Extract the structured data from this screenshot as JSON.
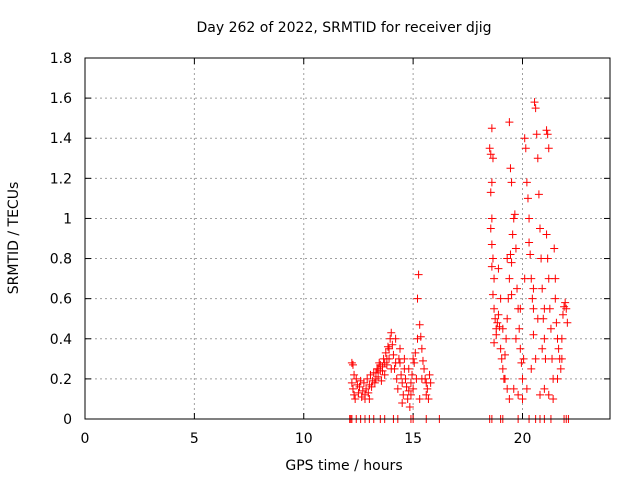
{
  "chart_data": {
    "type": "scatter",
    "title": "Day 262 of 2022, SRMTID for receiver djig",
    "xlabel": "GPS time / hours",
    "ylabel": "SRMTID / TECUs",
    "xlim": [
      0,
      24
    ],
    "ylim": [
      0,
      1.8
    ],
    "xticks": [
      0,
      5,
      10,
      15,
      20
    ],
    "yticks": [
      0,
      0.2,
      0.4,
      0.6,
      0.8,
      1,
      1.2,
      1.4,
      1.6,
      1.8
    ],
    "xtick_labels": [
      "0",
      "5",
      "10",
      "15",
      "20"
    ],
    "ytick_labels": [
      "0",
      "0.2",
      "0.4",
      "0.6",
      "0.8",
      "1",
      "1.2",
      "1.4",
      "1.6",
      "1.8"
    ],
    "grid": true,
    "marker": "+",
    "series": [
      {
        "name": "SRMTID",
        "color": "#ff0000",
        "points": [
          [
            12.1,
            0.0
          ],
          [
            12.15,
            0.0
          ],
          [
            12.2,
            0.0
          ],
          [
            12.4,
            0.0
          ],
          [
            12.6,
            0.0
          ],
          [
            12.8,
            0.0
          ],
          [
            13.0,
            0.0
          ],
          [
            13.2,
            0.0
          ],
          [
            13.5,
            0.0
          ],
          [
            13.7,
            0.0
          ],
          [
            14.1,
            0.0
          ],
          [
            14.3,
            0.0
          ],
          [
            14.9,
            0.0
          ],
          [
            15.0,
            0.0
          ],
          [
            15.6,
            0.0
          ],
          [
            16.2,
            0.0
          ],
          [
            18.5,
            0.0
          ],
          [
            18.6,
            0.0
          ],
          [
            19.0,
            0.0
          ],
          [
            19.1,
            0.0
          ],
          [
            19.8,
            0.0
          ],
          [
            20.3,
            0.0
          ],
          [
            20.6,
            0.0
          ],
          [
            20.8,
            0.0
          ],
          [
            21.0,
            0.0
          ],
          [
            21.3,
            0.0
          ],
          [
            21.9,
            0.0
          ],
          [
            22.0,
            0.0
          ],
          [
            22.1,
            0.0
          ],
          [
            12.2,
            0.28
          ],
          [
            12.25,
            0.27
          ],
          [
            12.3,
            0.22
          ],
          [
            12.2,
            0.18
          ],
          [
            12.25,
            0.15
          ],
          [
            12.3,
            0.12
          ],
          [
            12.35,
            0.1
          ],
          [
            12.4,
            0.2
          ],
          [
            12.45,
            0.17
          ],
          [
            12.5,
            0.13
          ],
          [
            12.55,
            0.16
          ],
          [
            12.6,
            0.19
          ],
          [
            12.65,
            0.11
          ],
          [
            12.7,
            0.14
          ],
          [
            12.75,
            0.18
          ],
          [
            12.8,
            0.12
          ],
          [
            12.85,
            0.15
          ],
          [
            12.9,
            0.2
          ],
          [
            12.95,
            0.13
          ],
          [
            13.0,
            0.17
          ],
          [
            13.05,
            0.22
          ],
          [
            13.1,
            0.16
          ],
          [
            13.15,
            0.19
          ],
          [
            13.2,
            0.23
          ],
          [
            13.25,
            0.18
          ],
          [
            13.3,
            0.2
          ],
          [
            13.35,
            0.25
          ],
          [
            13.4,
            0.21
          ],
          [
            13.45,
            0.28
          ],
          [
            13.5,
            0.24
          ],
          [
            13.55,
            0.19
          ],
          [
            13.6,
            0.26
          ],
          [
            13.65,
            0.3
          ],
          [
            13.7,
            0.22
          ],
          [
            13.75,
            0.33
          ],
          [
            13.8,
            0.27
          ],
          [
            13.85,
            0.36
          ],
          [
            13.9,
            0.3
          ],
          [
            13.95,
            0.4
          ],
          [
            14.0,
            0.43
          ],
          [
            14.05,
            0.37
          ],
          [
            14.1,
            0.32
          ],
          [
            14.15,
            0.25
          ],
          [
            14.2,
            0.28
          ],
          [
            14.25,
            0.2
          ],
          [
            14.3,
            0.15
          ],
          [
            14.35,
            0.3
          ],
          [
            14.4,
            0.35
          ],
          [
            14.45,
            0.22
          ],
          [
            14.5,
            0.18
          ],
          [
            14.55,
            0.12
          ],
          [
            14.6,
            0.25
          ],
          [
            14.65,
            0.2
          ],
          [
            14.7,
            0.16
          ],
          [
            14.75,
            0.1
          ],
          [
            14.8,
            0.14
          ],
          [
            14.85,
            0.06
          ],
          [
            14.9,
            0.18
          ],
          [
            14.95,
            0.22
          ],
          [
            15.0,
            0.3
          ],
          [
            15.05,
            0.28
          ],
          [
            15.1,
            0.33
          ],
          [
            15.15,
            0.2
          ],
          [
            15.2,
            0.6
          ],
          [
            15.25,
            0.72
          ],
          [
            15.3,
            0.47
          ],
          [
            15.35,
            0.41
          ],
          [
            15.4,
            0.35
          ],
          [
            15.45,
            0.29
          ],
          [
            15.5,
            0.25
          ],
          [
            15.55,
            0.2
          ],
          [
            15.6,
            0.18
          ],
          [
            15.65,
            0.15
          ],
          [
            15.7,
            0.1
          ],
          [
            15.75,
            0.22
          ],
          [
            15.8,
            0.18
          ],
          [
            13.3,
            0.23
          ],
          [
            13.4,
            0.25
          ],
          [
            13.5,
            0.27
          ],
          [
            13.6,
            0.24
          ],
          [
            13.7,
            0.28
          ],
          [
            13.8,
            0.3
          ],
          [
            13.9,
            0.35
          ],
          [
            14.0,
            0.25
          ],
          [
            14.2,
            0.4
          ],
          [
            14.4,
            0.28
          ],
          [
            14.6,
            0.3
          ],
          [
            14.8,
            0.25
          ],
          [
            15.0,
            0.15
          ],
          [
            15.2,
            0.4
          ],
          [
            15.4,
            0.2
          ],
          [
            15.6,
            0.12
          ],
          [
            15.3,
            0.1
          ],
          [
            14.9,
            0.12
          ],
          [
            14.5,
            0.08
          ],
          [
            13.0,
            0.1
          ],
          [
            12.8,
            0.1
          ],
          [
            18.5,
            1.35
          ],
          [
            18.55,
            1.32
          ],
          [
            18.6,
            1.45
          ],
          [
            18.65,
            1.3
          ],
          [
            18.6,
            1.18
          ],
          [
            18.55,
            1.13
          ],
          [
            18.6,
            1.0
          ],
          [
            18.55,
            0.95
          ],
          [
            18.6,
            0.87
          ],
          [
            18.65,
            0.8
          ],
          [
            18.6,
            0.76
          ],
          [
            18.7,
            0.7
          ],
          [
            18.65,
            0.62
          ],
          [
            18.7,
            0.55
          ],
          [
            18.75,
            0.5
          ],
          [
            18.8,
            0.45
          ],
          [
            18.7,
            0.38
          ],
          [
            18.8,
            0.42
          ],
          [
            18.85,
            0.48
          ],
          [
            18.9,
            0.52
          ],
          [
            18.95,
            0.46
          ],
          [
            19.0,
            0.35
          ],
          [
            19.05,
            0.3
          ],
          [
            19.1,
            0.25
          ],
          [
            19.15,
            0.2
          ],
          [
            19.2,
            0.32
          ],
          [
            19.25,
            0.4
          ],
          [
            19.3,
            0.5
          ],
          [
            19.35,
            0.6
          ],
          [
            19.4,
            0.7
          ],
          [
            19.45,
            0.82
          ],
          [
            19.5,
            0.78
          ],
          [
            19.55,
            0.92
          ],
          [
            19.6,
            1.0
          ],
          [
            19.5,
            1.18
          ],
          [
            19.45,
            1.25
          ],
          [
            19.4,
            1.48
          ],
          [
            19.65,
            1.02
          ],
          [
            19.7,
            0.85
          ],
          [
            19.75,
            0.65
          ],
          [
            19.8,
            0.55
          ],
          [
            19.85,
            0.45
          ],
          [
            19.9,
            0.35
          ],
          [
            19.95,
            0.28
          ],
          [
            20.0,
            0.2
          ],
          [
            20.05,
            0.3
          ],
          [
            20.1,
            1.4
          ],
          [
            20.15,
            1.35
          ],
          [
            20.2,
            1.18
          ],
          [
            20.25,
            1.1
          ],
          [
            20.3,
            1.0
          ],
          [
            20.35,
            0.82
          ],
          [
            20.4,
            0.7
          ],
          [
            20.45,
            0.6
          ],
          [
            20.5,
            0.55
          ],
          [
            20.55,
            1.58
          ],
          [
            20.6,
            1.55
          ],
          [
            20.65,
            1.42
          ],
          [
            20.7,
            1.3
          ],
          [
            20.75,
            1.12
          ],
          [
            20.8,
            0.95
          ],
          [
            20.85,
            0.8
          ],
          [
            20.9,
            0.65
          ],
          [
            20.95,
            0.5
          ],
          [
            21.0,
            0.4
          ],
          [
            21.05,
            0.3
          ],
          [
            21.1,
            1.44
          ],
          [
            21.15,
            1.42
          ],
          [
            21.2,
            1.35
          ],
          [
            21.1,
            0.92
          ],
          [
            21.15,
            0.8
          ],
          [
            21.2,
            0.7
          ],
          [
            21.25,
            0.55
          ],
          [
            21.3,
            0.45
          ],
          [
            21.35,
            0.3
          ],
          [
            21.4,
            0.2
          ],
          [
            21.45,
            0.85
          ],
          [
            21.5,
            0.6
          ],
          [
            21.55,
            0.48
          ],
          [
            21.6,
            0.4
          ],
          [
            21.65,
            0.35
          ],
          [
            21.7,
            0.3
          ],
          [
            21.75,
            0.25
          ],
          [
            21.8,
            0.4
          ],
          [
            21.85,
            0.52
          ],
          [
            21.9,
            0.56
          ],
          [
            21.95,
            0.58
          ],
          [
            22.0,
            0.55
          ],
          [
            22.05,
            0.48
          ],
          [
            18.9,
            0.75
          ],
          [
            19.0,
            0.6
          ],
          [
            19.1,
            0.45
          ],
          [
            19.2,
            0.2
          ],
          [
            19.3,
            0.15
          ],
          [
            19.4,
            0.1
          ],
          [
            19.6,
            0.15
          ],
          [
            19.8,
            0.12
          ],
          [
            20.0,
            0.1
          ],
          [
            20.2,
            0.15
          ],
          [
            20.4,
            0.25
          ],
          [
            20.6,
            0.3
          ],
          [
            20.8,
            0.12
          ],
          [
            21.0,
            0.15
          ],
          [
            21.2,
            0.12
          ],
          [
            21.4,
            0.1
          ],
          [
            21.6,
            0.2
          ],
          [
            21.8,
            0.3
          ],
          [
            20.3,
            0.88
          ],
          [
            20.5,
            0.65
          ],
          [
            20.7,
            0.5
          ],
          [
            20.9,
            0.35
          ],
          [
            19.3,
            0.8
          ],
          [
            19.5,
            0.62
          ],
          [
            19.7,
            0.4
          ],
          [
            19.9,
            0.55
          ],
          [
            20.1,
            0.7
          ],
          [
            20.5,
            0.42
          ],
          [
            21.0,
            0.55
          ],
          [
            21.5,
            0.7
          ]
        ]
      }
    ]
  }
}
